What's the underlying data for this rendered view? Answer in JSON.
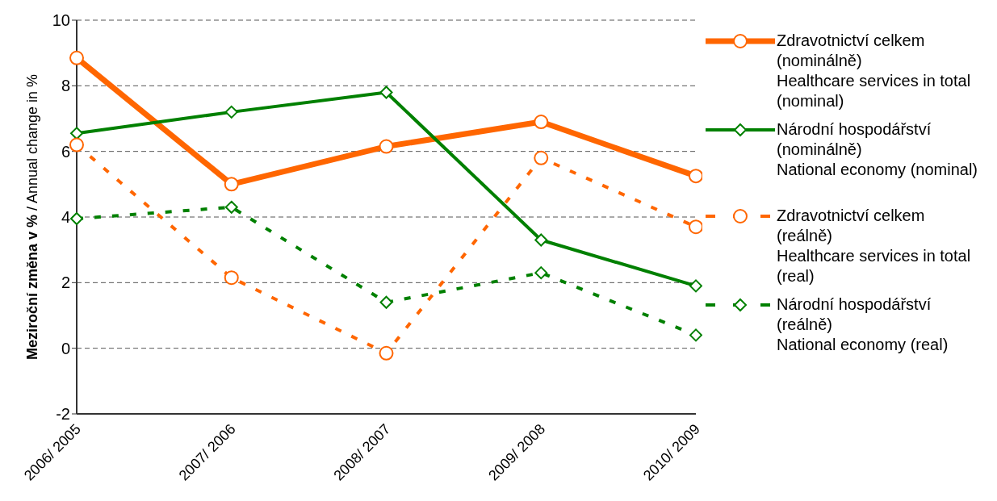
{
  "chart_data": {
    "type": "line",
    "ylabel": "Meziroční změna v % / Annual change in %",
    "categories": [
      "2006/ 2005",
      "2007/ 2006",
      "2008/ 2007",
      "2009/ 2008",
      "2010/ 2009"
    ],
    "series": [
      {
        "name": "Zdravotnictví celkem\n(nominálně)\nHealthcare services in total\n(nominal)",
        "color": "#ff6600",
        "values": [
          8.85,
          5.0,
          6.15,
          6.9,
          5.25
        ],
        "marker": "circle",
        "line_style": "solid"
      },
      {
        "name": "Národní hospodářství\n(nominálně)\nNational economy (nominal)",
        "color": "#008000",
        "values": [
          6.55,
          7.2,
          7.8,
          3.3,
          1.9
        ],
        "marker": "diamond",
        "line_style": "solid"
      },
      {
        "name": "Zdravotnictví celkem\n(reálně)\nHealthcare services in total\n(real)",
        "color": "#ff6600",
        "values": [
          6.2,
          2.15,
          -0.15,
          5.8,
          3.7
        ],
        "marker": "circle",
        "line_style": "dashed"
      },
      {
        "name": "Národní hospodářství\n(reálně)\nNational economy (real)",
        "color": "#008000",
        "values": [
          3.95,
          4.3,
          1.4,
          2.3,
          0.4
        ],
        "marker": "diamond",
        "line_style": "dashed"
      }
    ],
    "ylim": [
      -2,
      10
    ],
    "yticks": [
      -2,
      0,
      2,
      4,
      6,
      8,
      10
    ],
    "grid": "y",
    "legend": "right"
  }
}
